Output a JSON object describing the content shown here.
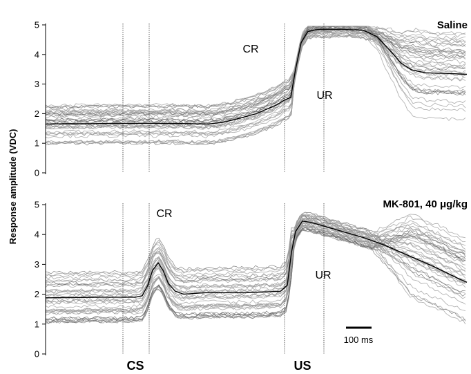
{
  "chart_data": [
    {
      "type": "line",
      "title": "Saline",
      "ylabel": "Response amplitude (VDC)",
      "ylim": [
        0,
        5
      ],
      "yticks": [
        "0",
        "1",
        "2",
        "3",
        "4",
        "5"
      ],
      "annotations": [
        "CR",
        "UR"
      ],
      "series": [
        {
          "values": [
            [
              0,
              1.65
            ],
            [
              30,
              1.66
            ],
            [
              60,
              1.66
            ],
            [
              100,
              1.67
            ],
            [
              140,
              1.67
            ],
            [
              180,
              1.67
            ],
            [
              210,
              1.66
            ],
            [
              235,
              1.65
            ],
            [
              255,
              1.7
            ],
            [
              270,
              1.78
            ],
            [
              290,
              1.9
            ],
            [
              305,
              2.0
            ],
            [
              320,
              2.15
            ],
            [
              335,
              2.3
            ],
            [
              345,
              2.45
            ],
            [
              355,
              2.55
            ],
            [
              362,
              3.5
            ],
            [
              370,
              4.4
            ],
            [
              380,
              4.78
            ],
            [
              395,
              4.85
            ],
            [
              430,
              4.85
            ],
            [
              460,
              4.82
            ],
            [
              480,
              4.6
            ],
            [
              500,
              4.1
            ],
            [
              515,
              3.7
            ],
            [
              530,
              3.48
            ],
            [
              550,
              3.38
            ],
            [
              580,
              3.36
            ],
            [
              610,
              3.33
            ]
          ]
        }
      ]
    },
    {
      "type": "line",
      "title": "MK-801, 40 μg/kg",
      "ylabel": "Response amplitude (VDC)",
      "ylim": [
        0,
        5
      ],
      "yticks": [
        "0",
        "1",
        "2",
        "3",
        "4",
        "5"
      ],
      "annotations": [
        "CR",
        "UR"
      ],
      "scale_bar": "100 ms",
      "series": [
        {
          "values": [
            [
              0,
              1.88
            ],
            [
              40,
              1.89
            ],
            [
              80,
              1.9
            ],
            [
              120,
              1.9
            ],
            [
              130,
              1.9
            ],
            [
              140,
              1.95
            ],
            [
              148,
              2.3
            ],
            [
              155,
              2.8
            ],
            [
              163,
              3.05
            ],
            [
              170,
              2.8
            ],
            [
              178,
              2.35
            ],
            [
              188,
              2.1
            ],
            [
              200,
              2.0
            ],
            [
              230,
              2.05
            ],
            [
              260,
              2.05
            ],
            [
              290,
              2.05
            ],
            [
              340,
              2.1
            ],
            [
              350,
              2.3
            ],
            [
              356,
              3.4
            ],
            [
              362,
              4.1
            ],
            [
              372,
              4.45
            ],
            [
              385,
              4.4
            ],
            [
              400,
              4.3
            ],
            [
              430,
              4.1
            ],
            [
              460,
              3.9
            ],
            [
              490,
              3.65
            ],
            [
              520,
              3.35
            ],
            [
              560,
              2.95
            ],
            [
              600,
              2.5
            ],
            [
              610,
              2.4
            ]
          ]
        }
      ]
    }
  ],
  "xlabels": {
    "cs": "CS",
    "us": "US"
  }
}
